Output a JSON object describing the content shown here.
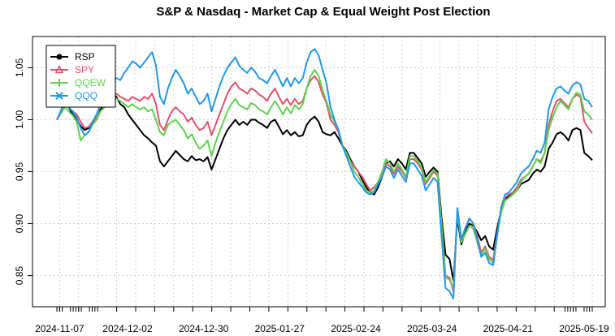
{
  "chart_data": {
    "type": "line",
    "title": "S&P & Nasdaq - Market Cap & Equal Weight Post Election",
    "xlabel": "",
    "ylabel": "",
    "ylim": [
      0.82,
      1.08
    ],
    "yticks": [
      0.85,
      0.9,
      0.95,
      1.0,
      1.05
    ],
    "ytick_labels": [
      "0.85",
      "0.90",
      "0.95",
      "1.00",
      "1.05"
    ],
    "x_start": "2024-11-06",
    "x_end": "2025-05-22",
    "xtick_labels": [
      "2024-11-07",
      "2024-12-02",
      "2024-12-30",
      "2025-01-27",
      "2025-02-24",
      "2025-03-24",
      "2025-04-21",
      "2025-05-19"
    ],
    "legend_position": "top-left",
    "grid": true,
    "series": [
      {
        "name": "RSP",
        "color": "#000000",
        "marker": "circle",
        "values": [
          1.0,
          1.008,
          1.02,
          1.012,
          1.005,
          1.0,
          0.994,
          0.99,
          0.992,
          0.996,
          1.0,
          1.01,
          1.015,
          1.02,
          1.025,
          1.022,
          1.015,
          1.012,
          1.005,
          1.0,
          0.995,
          0.99,
          0.985,
          0.982,
          0.978,
          0.975,
          0.96,
          0.955,
          0.96,
          0.965,
          0.97,
          0.966,
          0.962,
          0.96,
          0.965,
          0.961,
          0.962,
          0.96,
          0.964,
          0.952,
          0.962,
          0.972,
          0.982,
          0.99,
          0.995,
          1.0,
          0.995,
          0.998,
          0.995,
          1.0,
          1.0,
          0.997,
          0.995,
          0.992,
          0.998,
          1.0,
          0.993,
          0.986,
          0.99,
          0.985,
          0.988,
          0.984,
          0.985,
          0.995,
          1.0,
          1.003,
          0.998,
          0.988,
          0.986,
          0.985,
          0.988,
          0.982,
          0.975,
          0.97,
          0.962,
          0.955,
          0.95,
          0.942,
          0.935,
          0.93,
          0.928,
          0.935,
          0.945,
          0.958,
          0.96,
          0.955,
          0.962,
          0.958,
          0.952,
          0.968,
          0.968,
          0.963,
          0.958,
          0.945,
          0.95,
          0.954,
          0.95,
          0.906,
          0.87,
          0.866,
          0.845,
          0.905,
          0.88,
          0.892,
          0.9,
          0.898,
          0.892,
          0.884,
          0.888,
          0.878,
          0.875,
          0.895,
          0.912,
          0.923,
          0.927,
          0.93,
          0.932,
          0.938,
          0.94,
          0.942,
          0.948,
          0.952,
          0.95,
          0.955,
          0.972,
          0.978,
          0.986,
          0.988,
          0.985,
          0.98,
          0.99,
          0.992,
          0.99,
          0.968,
          0.965,
          0.961
        ]
      },
      {
        "name": "SPY",
        "color": "#df536b",
        "marker": "triangle",
        "values": [
          1.0,
          1.008,
          1.015,
          1.012,
          1.008,
          1.005,
          0.998,
          0.992,
          0.993,
          0.998,
          1.002,
          1.008,
          1.012,
          1.015,
          1.02,
          1.025,
          1.022,
          1.02,
          1.018,
          1.022,
          1.02,
          1.018,
          1.022,
          1.02,
          1.025,
          1.015,
          0.995,
          0.99,
          1.0,
          1.008,
          1.012,
          1.008,
          1.005,
          0.998,
          1.002,
          0.995,
          0.99,
          0.992,
          0.998,
          0.985,
          0.995,
          1.005,
          1.015,
          1.025,
          1.032,
          1.036,
          1.03,
          1.028,
          1.025,
          1.03,
          1.028,
          1.024,
          1.022,
          1.018,
          1.025,
          1.03,
          1.022,
          1.015,
          1.02,
          1.014,
          1.02,
          1.015,
          1.018,
          1.03,
          1.038,
          1.042,
          1.036,
          1.024,
          1.016,
          1.0,
          0.995,
          0.988,
          0.975,
          0.968,
          0.96,
          0.955,
          0.95,
          0.945,
          0.938,
          0.932,
          0.935,
          0.94,
          0.948,
          0.958,
          0.955,
          0.948,
          0.955,
          0.95,
          0.944,
          0.962,
          0.962,
          0.958,
          0.952,
          0.938,
          0.944,
          0.95,
          0.946,
          0.9,
          0.85,
          0.848,
          0.835,
          0.912,
          0.885,
          0.896,
          0.905,
          0.9,
          0.888,
          0.872,
          0.878,
          0.868,
          0.865,
          0.89,
          0.912,
          0.925,
          0.928,
          0.93,
          0.935,
          0.942,
          0.945,
          0.948,
          0.955,
          0.962,
          0.96,
          0.968,
          0.995,
          1.008,
          1.018,
          1.02,
          1.016,
          1.012,
          1.02,
          1.024,
          1.022,
          0.998,
          0.992,
          0.987
        ]
      },
      {
        "name": "QQEW",
        "color": "#61d04f",
        "marker": "plus",
        "values": [
          1.0,
          1.006,
          1.012,
          1.008,
          1.004,
          0.998,
          0.98,
          0.985,
          0.988,
          0.995,
          1.0,
          1.008,
          1.012,
          1.015,
          1.018,
          1.02,
          1.018,
          1.015,
          1.012,
          1.015,
          1.012,
          1.01,
          1.012,
          1.008,
          1.01,
          1.0,
          0.988,
          0.985,
          0.995,
          0.998,
          1.0,
          0.995,
          0.99,
          0.982,
          0.986,
          0.978,
          0.972,
          0.975,
          0.98,
          0.965,
          0.978,
          0.988,
          0.998,
          1.008,
          1.015,
          1.02,
          1.014,
          1.012,
          1.01,
          1.016,
          1.014,
          1.01,
          1.008,
          1.005,
          1.012,
          1.018,
          1.012,
          1.005,
          1.012,
          1.006,
          1.014,
          1.01,
          1.015,
          1.03,
          1.042,
          1.048,
          1.042,
          1.028,
          1.018,
          1.005,
          0.998,
          0.99,
          0.975,
          0.968,
          0.96,
          0.95,
          0.945,
          0.938,
          0.932,
          0.93,
          0.932,
          0.94,
          0.95,
          0.962,
          0.958,
          0.95,
          0.958,
          0.952,
          0.945,
          0.965,
          0.965,
          0.96,
          0.954,
          0.94,
          0.946,
          0.952,
          0.948,
          0.898,
          0.848,
          0.846,
          0.838,
          0.91,
          0.882,
          0.89,
          0.898,
          0.895,
          0.882,
          0.87,
          0.876,
          0.866,
          0.862,
          0.888,
          0.91,
          0.922,
          0.925,
          0.928,
          0.932,
          0.94,
          0.945,
          0.948,
          0.955,
          0.962,
          0.958,
          0.968,
          0.99,
          1.002,
          1.012,
          1.018,
          1.014,
          1.01,
          1.02,
          1.026,
          1.024,
          1.008,
          1.005,
          1.0
        ]
      },
      {
        "name": "QQQ",
        "color": "#2297e6",
        "marker": "cross",
        "values": [
          1.0,
          1.008,
          1.018,
          1.012,
          1.008,
          1.002,
          0.992,
          0.985,
          0.988,
          0.998,
          1.005,
          1.015,
          1.022,
          1.028,
          1.035,
          1.04,
          1.038,
          1.045,
          1.05,
          1.056,
          1.054,
          1.05,
          1.055,
          1.06,
          1.065,
          1.052,
          1.022,
          1.015,
          1.03,
          1.04,
          1.048,
          1.042,
          1.035,
          1.025,
          1.03,
          1.022,
          1.015,
          1.018,
          1.025,
          1.008,
          1.02,
          1.032,
          1.042,
          1.05,
          1.055,
          1.06,
          1.052,
          1.048,
          1.045,
          1.05,
          1.046,
          1.04,
          1.038,
          1.035,
          1.042,
          1.048,
          1.04,
          1.032,
          1.04,
          1.032,
          1.04,
          1.035,
          1.04,
          1.055,
          1.065,
          1.068,
          1.062,
          1.048,
          1.035,
          1.012,
          1.0,
          0.99,
          0.975,
          0.965,
          0.955,
          0.945,
          0.94,
          0.935,
          0.93,
          0.928,
          0.93,
          0.938,
          0.945,
          0.955,
          0.952,
          0.944,
          0.952,
          0.946,
          0.94,
          0.958,
          0.958,
          0.952,
          0.946,
          0.932,
          0.938,
          0.944,
          0.94,
          0.888,
          0.838,
          0.835,
          0.828,
          0.915,
          0.885,
          0.895,
          0.905,
          0.9,
          0.885,
          0.868,
          0.872,
          0.862,
          0.86,
          0.888,
          0.915,
          0.928,
          0.93,
          0.935,
          0.94,
          0.948,
          0.952,
          0.955,
          0.962,
          0.97,
          0.968,
          0.978,
          1.01,
          1.022,
          1.03,
          1.032,
          1.028,
          1.025,
          1.033,
          1.036,
          1.034,
          1.02,
          1.018,
          1.012
        ]
      }
    ]
  }
}
